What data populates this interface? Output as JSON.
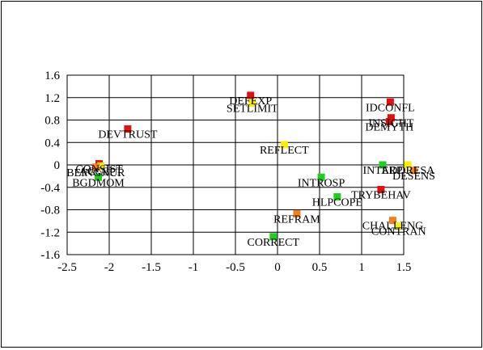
{
  "chart_data": {
    "type": "scatter",
    "title": "",
    "xlabel": "",
    "ylabel": "",
    "xlim": [
      -2.5,
      1.5
    ],
    "ylim": [
      -1.6,
      1.6
    ],
    "x_ticks": [
      -2.5,
      -2,
      -1.5,
      -1,
      -0.5,
      0,
      0.5,
      1,
      1.5
    ],
    "y_ticks": [
      1.6,
      1.2,
      0.8,
      0.4,
      0,
      -0.4,
      -0.8,
      -1.2,
      -1.6
    ],
    "x_tick_labels": [
      "-2.5",
      "-2",
      "-1.5",
      "-1",
      "-0.5",
      "0",
      "0.5",
      "1",
      "1.5"
    ],
    "y_tick_labels": [
      "1.6",
      "1.2",
      "0.8",
      "0.4",
      "0",
      "-0.4",
      "-0.8",
      "-1.2",
      "-1.6"
    ],
    "grid": true,
    "legend": "none",
    "colors": {
      "red": "#e01010",
      "yellow": "#f8f000",
      "green": "#20d020",
      "orange": "#f08020"
    },
    "points": [
      {
        "label": "DEVTRUST",
        "x": -1.78,
        "y": 0.64,
        "color": "red"
      },
      {
        "label": "DEFEXP",
        "x": -0.32,
        "y": 1.24,
        "color": "red"
      },
      {
        "label": "SETLIMIT",
        "x": -0.3,
        "y": 1.1,
        "color": "yellow"
      },
      {
        "label": "IDCONFL",
        "x": 1.34,
        "y": 1.12,
        "color": "red"
      },
      {
        "label": "INSIGHT",
        "x": 1.35,
        "y": 0.84,
        "color": "red"
      },
      {
        "label": "DEMYTH",
        "x": 1.33,
        "y": 0.77,
        "color": "red"
      },
      {
        "label": "REFLECT",
        "x": 0.08,
        "y": 0.36,
        "color": "yellow"
      },
      {
        "label": "CONSIST",
        "x": -2.12,
        "y": 0.02,
        "color": "red"
      },
      {
        "label": "ACCEPT",
        "x": -2.1,
        "y": -0.02,
        "color": "yellow"
      },
      {
        "label": "BEINGNUR",
        "x": -2.16,
        "y": -0.04,
        "color": "orange"
      },
      {
        "label": "BGDMOM",
        "x": -2.13,
        "y": -0.22,
        "color": "green"
      },
      {
        "label": "INTERP",
        "x": 1.25,
        "y": 0.0,
        "color": "green"
      },
      {
        "label": "ADDRESA",
        "x": 1.55,
        "y": 0.0,
        "color": "yellow"
      },
      {
        "label": "DESENS",
        "x": 1.62,
        "y": -0.1,
        "color": "orange"
      },
      {
        "label": "INTROSP",
        "x": 0.52,
        "y": -0.22,
        "color": "green"
      },
      {
        "label": "TRYBEHAV",
        "x": 1.23,
        "y": -0.44,
        "color": "red"
      },
      {
        "label": "HLPCOPE",
        "x": 0.71,
        "y": -0.57,
        "color": "green"
      },
      {
        "label": "REFRAM",
        "x": 0.23,
        "y": -0.87,
        "color": "orange"
      },
      {
        "label": "CHALLENG",
        "x": 1.37,
        "y": -0.99,
        "color": "orange"
      },
      {
        "label": "CONTRAN",
        "x": 1.44,
        "y": -1.09,
        "color": "yellow"
      },
      {
        "label": "CORRECT",
        "x": -0.05,
        "y": -1.28,
        "color": "green"
      }
    ]
  }
}
